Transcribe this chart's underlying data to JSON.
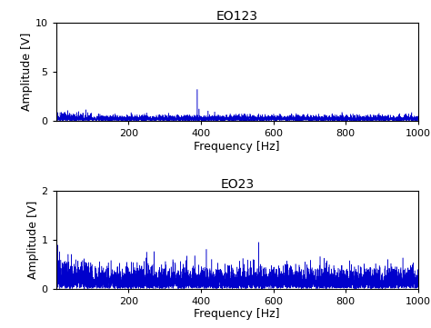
{
  "title1": "EO123",
  "title2": "EO23",
  "xlabel": "Frequency [Hz]",
  "ylabel": "Amplitude [V]",
  "xlim": [
    0,
    1000
  ],
  "ylim1": [
    0,
    10
  ],
  "ylim2": [
    0,
    2
  ],
  "yticks1": [
    0,
    5,
    10
  ],
  "yticks2": [
    0,
    1,
    2
  ],
  "xticks": [
    200,
    400,
    600,
    800,
    1000
  ],
  "line_color": "#0000cc",
  "bg_color": "#ffffff",
  "title_fontsize": 10,
  "label_fontsize": 9,
  "tick_fontsize": 8,
  "n_points": 5000,
  "noise_scale1": 0.25,
  "noise_scale2": 0.2,
  "spike1_freq": 390,
  "spike1_amp": 3.2,
  "spike2_freq": 560,
  "spike2_amp": 0.95,
  "seed1": 10,
  "seed2": 20
}
